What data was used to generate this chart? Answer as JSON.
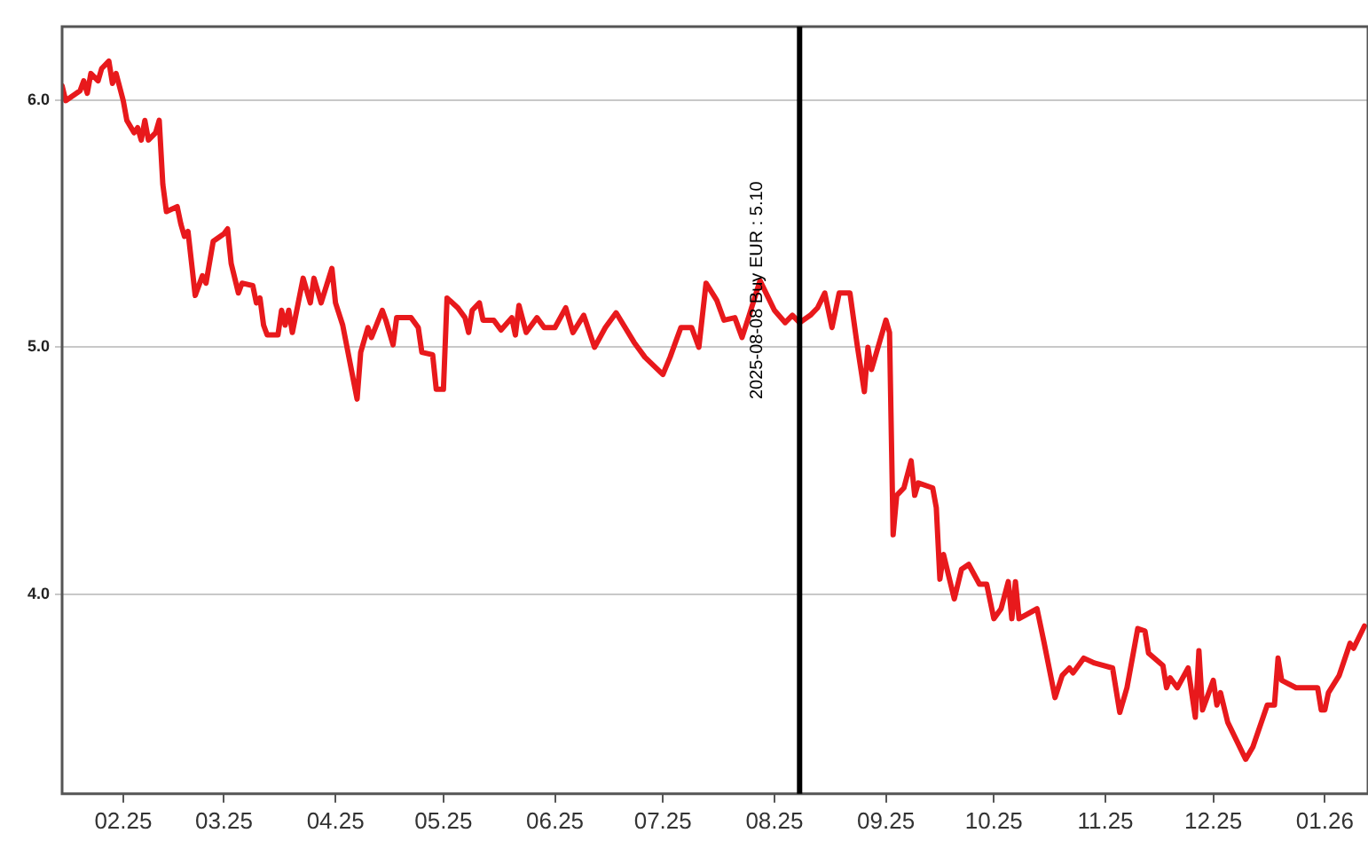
{
  "chart_data": {
    "type": "line",
    "grid": "y",
    "legend": false,
    "marker": "none",
    "line_style": "solid",
    "xlim": [
      "2025-01-15",
      "2026-01-13"
    ],
    "xticks": [
      {
        "value": "2025-02-01",
        "label": "02.25"
      },
      {
        "value": "2025-03-01",
        "label": "03.25"
      },
      {
        "value": "2025-04-01",
        "label": "04.25"
      },
      {
        "value": "2025-05-01",
        "label": "05.25"
      },
      {
        "value": "2025-06-01",
        "label": "06.25"
      },
      {
        "value": "2025-07-01",
        "label": "07.25"
      },
      {
        "value": "2025-08-01",
        "label": "08.25"
      },
      {
        "value": "2025-09-01",
        "label": "09.25"
      },
      {
        "value": "2025-10-01",
        "label": "10.25"
      },
      {
        "value": "2025-11-01",
        "label": "11.25"
      },
      {
        "value": "2025-12-01",
        "label": "12.25"
      },
      {
        "value": "2026-01-01",
        "label": "01.26"
      }
    ],
    "ylim": [
      3.19,
      6.3
    ],
    "yticks": [
      {
        "value": 4,
        "label": "4.0"
      },
      {
        "value": 5,
        "label": "5.0"
      },
      {
        "value": 6,
        "label": "6.0"
      }
    ],
    "ref_lines": [
      {
        "axis": "x",
        "value": "2025-08-08",
        "label": "2025-08-08 Buy EUR : 5.10",
        "color": "#000000"
      }
    ],
    "series": [
      {
        "color": "#e8191c",
        "x": [
          "2025-01-15",
          "2025-01-16",
          "2025-01-20",
          "2025-01-21",
          "2025-01-22",
          "2025-01-23",
          "2025-01-25",
          "2025-01-26",
          "2025-01-28",
          "2025-01-29",
          "2025-01-30",
          "2025-02-01",
          "2025-02-02",
          "2025-02-04",
          "2025-02-05",
          "2025-02-06",
          "2025-02-07",
          "2025-02-08",
          "2025-02-10",
          "2025-02-11",
          "2025-02-12",
          "2025-02-13",
          "2025-02-16",
          "2025-02-17",
          "2025-02-18",
          "2025-02-19",
          "2025-02-21",
          "2025-02-23",
          "2025-02-24",
          "2025-02-26",
          "2025-03-01",
          "2025-03-02",
          "2025-03-03",
          "2025-03-05",
          "2025-03-06",
          "2025-03-09",
          "2025-03-10",
          "2025-03-11",
          "2025-03-12",
          "2025-03-13",
          "2025-03-16",
          "2025-03-17",
          "2025-03-18",
          "2025-03-19",
          "2025-03-20",
          "2025-03-23",
          "2025-03-25",
          "2025-03-26",
          "2025-03-28",
          "2025-03-31",
          "2025-04-01",
          "2025-04-03",
          "2025-04-07",
          "2025-04-08",
          "2025-04-10",
          "2025-04-11",
          "2025-04-14",
          "2025-04-15",
          "2025-04-17",
          "2025-04-18",
          "2025-04-22",
          "2025-04-24",
          "2025-04-25",
          "2025-04-28",
          "2025-04-29",
          "2025-05-01",
          "2025-05-02",
          "2025-05-05",
          "2025-05-07",
          "2025-05-08",
          "2025-05-09",
          "2025-05-11",
          "2025-05-12",
          "2025-05-15",
          "2025-05-17",
          "2025-05-20",
          "2025-05-21",
          "2025-05-22",
          "2025-05-24",
          "2025-05-27",
          "2025-05-29",
          "2025-06-01",
          "2025-06-04",
          "2025-06-06",
          "2025-06-09",
          "2025-06-12",
          "2025-06-15",
          "2025-06-18",
          "2025-06-23",
          "2025-06-26",
          "2025-07-01",
          "2025-07-03",
          "2025-07-06",
          "2025-07-09",
          "2025-07-11",
          "2025-07-13",
          "2025-07-16",
          "2025-07-18",
          "2025-07-21",
          "2025-07-23",
          "2025-07-25",
          "2025-07-28",
          "2025-08-01",
          "2025-08-04",
          "2025-08-06",
          "2025-08-08",
          "2025-08-11",
          "2025-08-13",
          "2025-08-15",
          "2025-08-17",
          "2025-08-19",
          "2025-08-22",
          "2025-08-24",
          "2025-08-26",
          "2025-08-27",
          "2025-08-28",
          "2025-09-01",
          "2025-09-02",
          "2025-09-03",
          "2025-09-04",
          "2025-09-06",
          "2025-09-08",
          "2025-09-09",
          "2025-09-10",
          "2025-09-14",
          "2025-09-15",
          "2025-09-16",
          "2025-09-17",
          "2025-09-20",
          "2025-09-22",
          "2025-09-24",
          "2025-09-27",
          "2025-09-29",
          "2025-10-01",
          "2025-10-03",
          "2025-10-05",
          "2025-10-06",
          "2025-10-07",
          "2025-10-08",
          "2025-10-13",
          "2025-10-15",
          "2025-10-18",
          "2025-10-20",
          "2025-10-22",
          "2025-10-23",
          "2025-10-26",
          "2025-10-29",
          "2025-11-03",
          "2025-11-05",
          "2025-11-07",
          "2025-11-10",
          "2025-11-12",
          "2025-11-13",
          "2025-11-17",
          "2025-11-18",
          "2025-11-19",
          "2025-11-21",
          "2025-11-24",
          "2025-11-26",
          "2025-11-27",
          "2025-11-28",
          "2025-12-01",
          "2025-12-02",
          "2025-12-03",
          "2025-12-05",
          "2025-12-10",
          "2025-12-12",
          "2025-12-16",
          "2025-12-18",
          "2025-12-19",
          "2025-12-20",
          "2025-12-24",
          "2025-12-30",
          "2025-12-31",
          "2026-01-01",
          "2026-01-02",
          "2026-01-05",
          "2026-01-08",
          "2026-01-09",
          "2026-01-12"
        ],
        "values": [
          6.06,
          6.0,
          6.04,
          6.08,
          6.03,
          6.11,
          6.08,
          6.13,
          6.16,
          6.07,
          6.11,
          6.0,
          5.92,
          5.87,
          5.89,
          5.84,
          5.92,
          5.84,
          5.87,
          5.92,
          5.66,
          5.55,
          5.57,
          5.5,
          5.45,
          5.47,
          5.21,
          5.29,
          5.26,
          5.43,
          5.46,
          5.48,
          5.34,
          5.22,
          5.26,
          5.25,
          5.18,
          5.2,
          5.09,
          5.05,
          5.05,
          5.15,
          5.09,
          5.15,
          5.06,
          5.28,
          5.18,
          5.28,
          5.18,
          5.32,
          5.18,
          5.09,
          4.79,
          4.98,
          5.08,
          5.04,
          5.15,
          5.11,
          5.01,
          5.12,
          5.12,
          5.08,
          4.98,
          4.97,
          4.83,
          4.83,
          5.2,
          5.16,
          5.12,
          5.06,
          5.15,
          5.18,
          5.11,
          5.11,
          5.07,
          5.12,
          5.05,
          5.17,
          5.06,
          5.12,
          5.08,
          5.08,
          5.16,
          5.06,
          5.13,
          5.0,
          5.08,
          5.14,
          5.02,
          4.96,
          4.89,
          4.96,
          5.08,
          5.08,
          5.0,
          5.26,
          5.19,
          5.11,
          5.12,
          5.04,
          5.13,
          5.27,
          5.15,
          5.1,
          5.13,
          5.1,
          5.13,
          5.16,
          5.22,
          5.08,
          5.22,
          5.22,
          5.01,
          4.82,
          5.0,
          4.91,
          5.11,
          5.06,
          4.24,
          4.4,
          4.43,
          4.54,
          4.4,
          4.45,
          4.43,
          4.35,
          4.06,
          4.16,
          3.98,
          4.1,
          4.12,
          4.04,
          4.04,
          3.9,
          3.94,
          4.05,
          3.9,
          4.05,
          3.9,
          3.94,
          3.8,
          3.58,
          3.67,
          3.7,
          3.68,
          3.74,
          3.72,
          3.7,
          3.52,
          3.62,
          3.86,
          3.85,
          3.76,
          3.71,
          3.62,
          3.66,
          3.62,
          3.7,
          3.5,
          3.77,
          3.53,
          3.65,
          3.55,
          3.6,
          3.48,
          3.33,
          3.38,
          3.55,
          3.55,
          3.74,
          3.65,
          3.62,
          3.62,
          3.53,
          3.53,
          3.6,
          3.67,
          3.8,
          3.78,
          3.87
        ]
      }
    ]
  }
}
